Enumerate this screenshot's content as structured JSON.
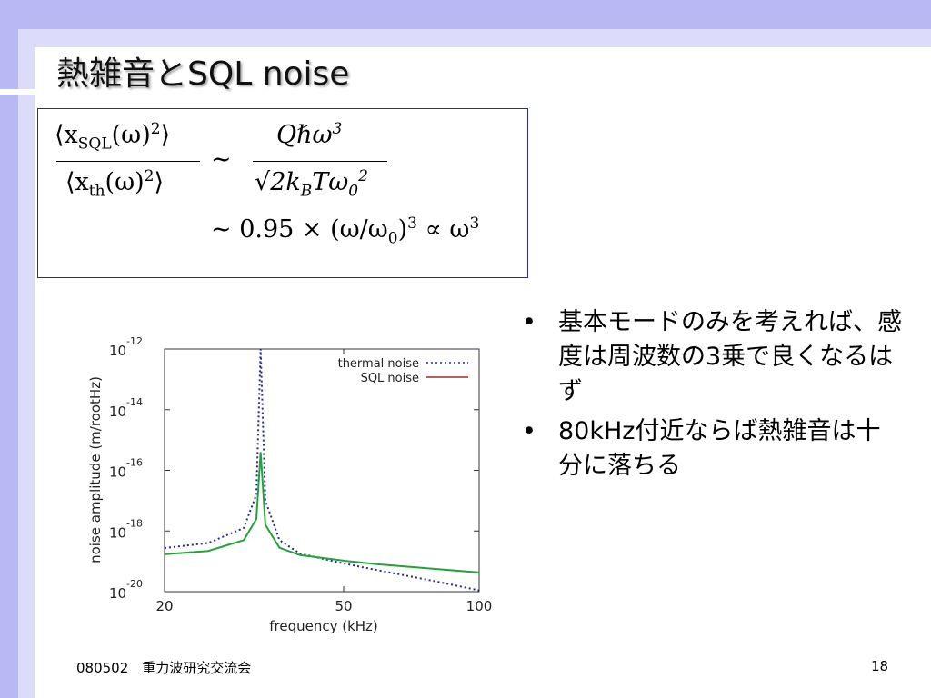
{
  "header": {
    "title": "熱雑音とSQL noise"
  },
  "formula": {
    "lhs_num": {
      "a": "⟨x",
      "sub": "SQL",
      "b": "(ω)",
      "sup": "2",
      "c": "⟩"
    },
    "lhs_den": {
      "a": "⟨x",
      "sub": "th",
      "b": "(ω)",
      "sup": "2",
      "c": "⟩"
    },
    "sim": "∼",
    "rhs_num": {
      "a": "Qℏω",
      "sup": "3"
    },
    "rhs_den": {
      "a": "√2k",
      "sub": "B",
      "b": "Tω",
      "sub2": "0",
      "sup2": "2"
    },
    "line2": {
      "a": "∼ 0.95 × (ω/ω",
      "sub": "0",
      "b": ")",
      "sup": "3",
      "c": " ∝ ω",
      "sup2": "3"
    }
  },
  "bullets": [
    "基本モードのみを考えれば、感度は周波数の3乗で良くなるはず",
    "80kHz付近ならば熱雑音は十分に落ちる"
  ],
  "footer": {
    "left": "080502　重力波研究交流会",
    "page": "18"
  },
  "chart_data": {
    "type": "line",
    "xlabel": "frequency (kHz)",
    "ylabel": "noise amplitude (m/rootHz)",
    "xscale": "log",
    "yscale": "log",
    "xlim": [
      20,
      100
    ],
    "ylim": [
      1e-20,
      1e-12
    ],
    "xticks": [
      20,
      50,
      100
    ],
    "yticks": [
      {
        "value": 1e-12,
        "label": "10^-12"
      },
      {
        "value": 1e-14,
        "label": "10^-14"
      },
      {
        "value": 1e-16,
        "label": "10^-16"
      },
      {
        "value": 1e-18,
        "label": "10^-18"
      },
      {
        "value": 1e-20,
        "label": "10^-20"
      }
    ],
    "legend": "upper right",
    "x": [
      20,
      25,
      30,
      32,
      32.7,
      33.5,
      36,
      40,
      50,
      60,
      80,
      100
    ],
    "series": [
      {
        "name": "thermal noise",
        "color": "#2b2b8f",
        "legend_color": "#2b2b8f",
        "dash": "dotted",
        "values": [
          2.75e-19,
          4e-19,
          1.26e-18,
          1.6e-17,
          1e-12,
          1e-17,
          5e-19,
          1.8e-19,
          8.5e-20,
          5e-20,
          2.2e-20,
          1.1e-20
        ]
      },
      {
        "name": "SQL noise",
        "color": "#22a33a",
        "legend_color": "#a0282a",
        "dash": "solid",
        "values": [
          1.7e-19,
          2.2e-19,
          5e-19,
          2.5e-18,
          4e-16,
          1.6e-18,
          2.8e-19,
          1.6e-19,
          1.05e-19,
          7.9e-20,
          5.6e-20,
          4.3e-20
        ]
      }
    ]
  }
}
